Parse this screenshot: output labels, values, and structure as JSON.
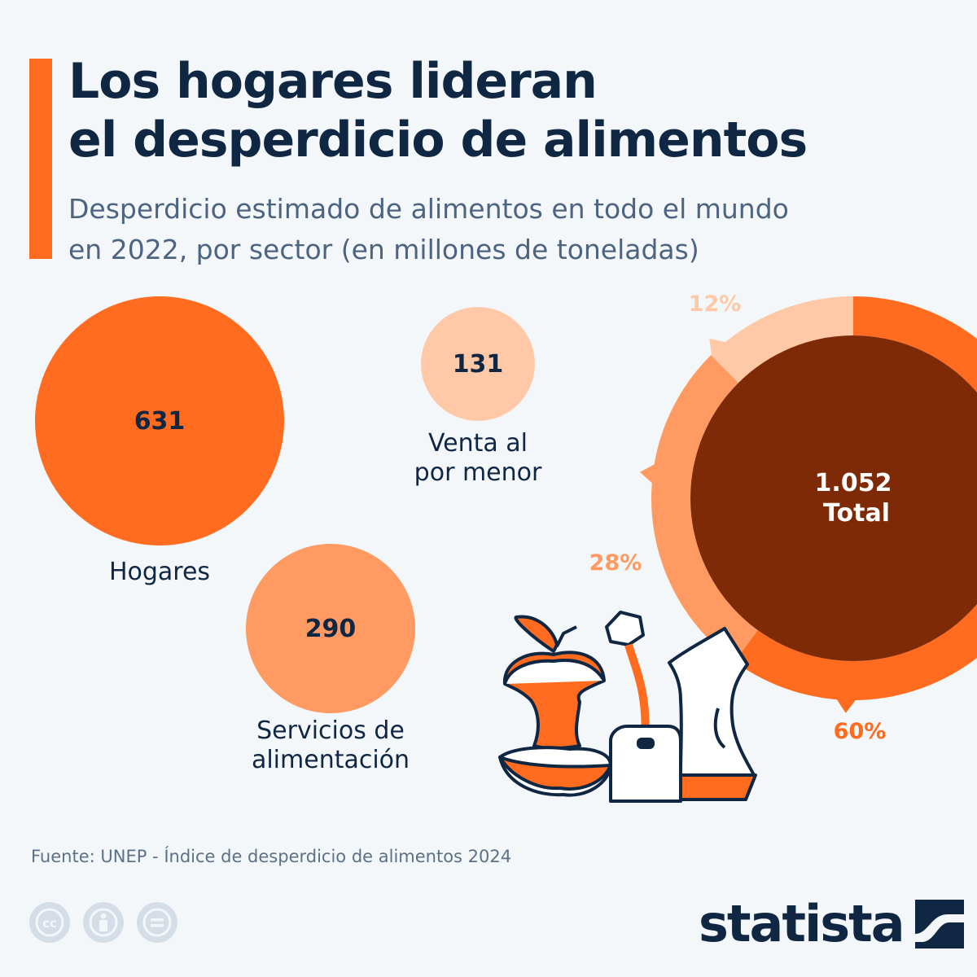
{
  "header": {
    "title": "Los hogares lideran\nel desperdicio de alimentos",
    "subtitle": "Desperdicio estimado de alimentos en todo el mundo\nen 2022, por sector (en millones de toneladas)"
  },
  "chart_data": {
    "type": "pie",
    "unit": "millones de toneladas",
    "categories": [
      "Hogares",
      "Servicios de alimentación",
      "Venta al por menor"
    ],
    "values": [
      631,
      290,
      131
    ],
    "value_labels": [
      "631",
      "290",
      "131"
    ],
    "bubble_labels": [
      "Hogares",
      "Servicios de\nalimentación",
      "Venta al\npor menor"
    ],
    "shares": [
      60,
      28,
      12
    ],
    "share_labels": [
      "60%",
      "28%",
      "12%"
    ],
    "total": 1052,
    "total_value_label": "1.052",
    "total_label": "Total",
    "colors": [
      "#ff6b1f",
      "#ff9a62",
      "#ffc9a8"
    ],
    "center_color": "#7f2a06"
  },
  "footer": {
    "source": "Fuente: UNEP - Índice de desperdicio de alimentos 2024",
    "brand": "statista",
    "license_icons": [
      "cc-icon",
      "by-icon",
      "nd-icon"
    ]
  },
  "illustration": {
    "items": [
      "apple-core-icon",
      "juice-box-icon",
      "crumpled-paper-icon"
    ]
  }
}
